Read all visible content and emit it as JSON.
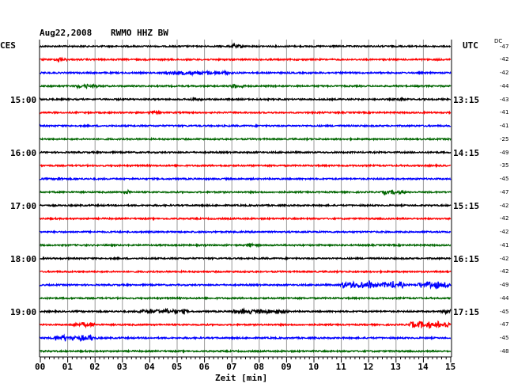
{
  "header": {
    "date": "Aug22,2008",
    "station": "RWMO HHZ BW",
    "left_tz": "CES",
    "right_tz": "UTC",
    "dc_label": "DC"
  },
  "chart_data": {
    "type": "line",
    "title": "Aug22,2008   RWMO HHZ BW",
    "xlabel": "Zeit [min]",
    "x_ticks": [
      "00",
      "01",
      "02",
      "03",
      "04",
      "05",
      "06",
      "07",
      "08",
      "09",
      "10",
      "11",
      "12",
      "13",
      "14",
      "15"
    ],
    "xlim": [
      0,
      15
    ],
    "grid": true,
    "left_time_labels": [
      {
        "row": 4,
        "label": "15:00"
      },
      {
        "row": 8,
        "label": "16:00"
      },
      {
        "row": 12,
        "label": "17:00"
      },
      {
        "row": 16,
        "label": "18:00"
      },
      {
        "row": 20,
        "label": "19:00"
      }
    ],
    "right_time_labels": [
      {
        "row": 4,
        "label": "13:15"
      },
      {
        "row": 8,
        "label": "14:15"
      },
      {
        "row": 12,
        "label": "15:15"
      },
      {
        "row": 16,
        "label": "16:15"
      },
      {
        "row": 20,
        "label": "17:15"
      }
    ],
    "trace_colors": [
      "#000000",
      "#ff0000",
      "#0000ff",
      "#006600"
    ],
    "traces": [
      {
        "row": 0,
        "dc": "-47",
        "events": [
          [
            7.0,
            0.4,
            3
          ]
        ]
      },
      {
        "row": 1,
        "dc": "-42",
        "events": [
          [
            0.6,
            0.3,
            2.5
          ]
        ]
      },
      {
        "row": 2,
        "dc": "-42",
        "events": [
          [
            4.5,
            2.5,
            2
          ]
        ]
      },
      {
        "row": 3,
        "dc": "-44",
        "events": [
          [
            1.3,
            0.8,
            2
          ],
          [
            7.0,
            0.4,
            2.5
          ]
        ]
      },
      {
        "row": 4,
        "dc": "-43",
        "events": [
          [
            5.5,
            0.3,
            2
          ],
          [
            13.1,
            0.2,
            2.5
          ]
        ]
      },
      {
        "row": 5,
        "dc": "-41",
        "events": [
          [
            4.0,
            0.3,
            2
          ]
        ]
      },
      {
        "row": 6,
        "dc": "-41",
        "events": []
      },
      {
        "row": 7,
        "dc": "-25",
        "events": []
      },
      {
        "row": 8,
        "dc": "-49",
        "events": []
      },
      {
        "row": 9,
        "dc": "-35",
        "events": []
      },
      {
        "row": 10,
        "dc": "-45",
        "events": [
          [
            0.6,
            0.2,
            2
          ]
        ]
      },
      {
        "row": 11,
        "dc": "-47",
        "events": [
          [
            3.1,
            0.2,
            2.5
          ],
          [
            12.5,
            0.8,
            2
          ]
        ]
      },
      {
        "row": 12,
        "dc": "-42",
        "events": []
      },
      {
        "row": 13,
        "dc": "-42",
        "events": []
      },
      {
        "row": 14,
        "dc": "-42",
        "events": []
      },
      {
        "row": 15,
        "dc": "-41",
        "events": [
          [
            7.6,
            0.3,
            2.5
          ]
        ]
      },
      {
        "row": 16,
        "dc": "-42",
        "events": []
      },
      {
        "row": 17,
        "dc": "-42",
        "events": []
      },
      {
        "row": 18,
        "dc": "-49",
        "events": [
          [
            11.0,
            1.3,
            5
          ],
          [
            12.5,
            0.8,
            4
          ],
          [
            13.8,
            1.3,
            4
          ]
        ]
      },
      {
        "row": 19,
        "dc": "-44",
        "events": []
      },
      {
        "row": 20,
        "dc": "-45",
        "events": [
          [
            3.6,
            1.8,
            2.5
          ],
          [
            7.0,
            2.0,
            2.5
          ],
          [
            14.7,
            0.5,
            3
          ]
        ]
      },
      {
        "row": 21,
        "dc": "-47",
        "events": [
          [
            1.2,
            0.8,
            2.5
          ],
          [
            13.5,
            1.5,
            4
          ]
        ]
      },
      {
        "row": 22,
        "dc": "-45",
        "events": [
          [
            0.5,
            1.5,
            3.5
          ]
        ]
      },
      {
        "row": 23,
        "dc": "-48",
        "events": []
      }
    ]
  }
}
